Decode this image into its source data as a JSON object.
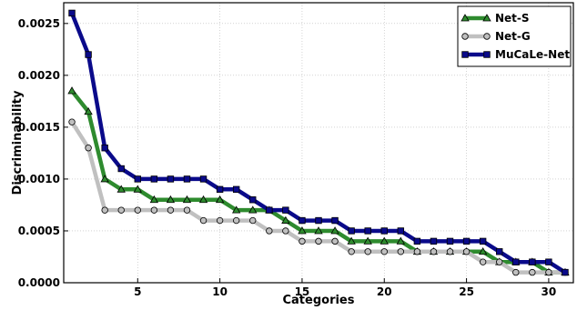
{
  "chart_data": {
    "type": "line",
    "title": "",
    "xlabel": "Categories",
    "ylabel": "Discriminability",
    "xlim": [
      0.5,
      31.5
    ],
    "ylim": [
      0,
      0.0027
    ],
    "x_ticks": [
      5,
      10,
      15,
      20,
      25,
      30
    ],
    "x_tick_labels": [
      "5",
      "10",
      "15",
      "20",
      "25",
      "30"
    ],
    "y_ticks": [
      0,
      0.0005,
      0.001,
      0.0015,
      0.002,
      0.0025
    ],
    "y_tick_labels": [
      "0.0000",
      "0.0005",
      "0.0010",
      "0.0015",
      "0.0020",
      "0.0025"
    ],
    "grid": true,
    "legend_position": "top-right",
    "x": [
      1,
      2,
      3,
      4,
      5,
      6,
      7,
      8,
      9,
      10,
      11,
      12,
      13,
      14,
      15,
      16,
      17,
      18,
      19,
      20,
      21,
      22,
      23,
      24,
      25,
      26,
      27,
      28,
      29,
      30,
      31
    ],
    "series": [
      {
        "name": "Net-S",
        "color": "#2e8b2e",
        "marker": "triangle",
        "values": [
          0.00185,
          0.00165,
          0.001,
          0.0009,
          0.0009,
          0.0008,
          0.0008,
          0.0008,
          0.0008,
          0.0008,
          0.0007,
          0.0007,
          0.0007,
          0.0006,
          0.0005,
          0.0005,
          0.0005,
          0.0004,
          0.0004,
          0.0004,
          0.0004,
          0.0003,
          0.0003,
          0.0003,
          0.0003,
          0.0003,
          0.0002,
          0.0002,
          0.0002,
          0.0001,
          0.0001
        ]
      },
      {
        "name": "Net-G",
        "color": "#c0c0c0",
        "marker": "circle",
        "values": [
          0.00155,
          0.0013,
          0.0007,
          0.0007,
          0.0007,
          0.0007,
          0.0007,
          0.0007,
          0.0006,
          0.0006,
          0.0006,
          0.0006,
          0.0005,
          0.0005,
          0.0004,
          0.0004,
          0.0004,
          0.0003,
          0.0003,
          0.0003,
          0.0003,
          0.0003,
          0.0003,
          0.0003,
          0.0003,
          0.0002,
          0.0002,
          0.0001,
          0.0001,
          0.0001,
          0.0001
        ]
      },
      {
        "name": "MuCaLe-Net",
        "color": "#0a0a8a",
        "marker": "square",
        "values": [
          0.0026,
          0.0022,
          0.0013,
          0.0011,
          0.001,
          0.001,
          0.001,
          0.001,
          0.001,
          0.0009,
          0.0009,
          0.0008,
          0.0007,
          0.0007,
          0.0006,
          0.0006,
          0.0006,
          0.0005,
          0.0005,
          0.0005,
          0.0005,
          0.0004,
          0.0004,
          0.0004,
          0.0004,
          0.0004,
          0.0003,
          0.0002,
          0.0002,
          0.0002,
          0.0001
        ]
      }
    ]
  }
}
